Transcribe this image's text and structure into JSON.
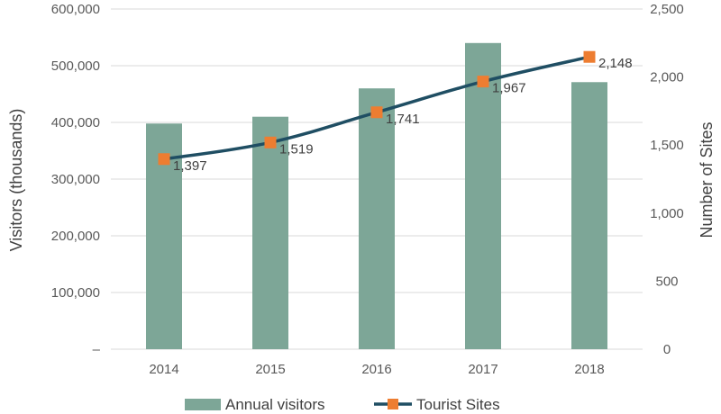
{
  "chart_data": {
    "type": "bar+line",
    "categories": [
      "2014",
      "2015",
      "2016",
      "2017",
      "2018"
    ],
    "series": [
      {
        "name": "Annual visitors",
        "type": "bar",
        "axis": "left",
        "values": [
          398000,
          410000,
          460000,
          540000,
          471000
        ],
        "color": "#7DA697"
      },
      {
        "name": "Tourist Sites",
        "type": "line",
        "axis": "right",
        "values": [
          1397,
          1519,
          1741,
          1967,
          2148
        ],
        "value_labels": [
          "1,397",
          "1,519",
          "1,741",
          "1,967",
          "2,148"
        ],
        "line_color": "#1F4E63",
        "marker_color": "#ED7D31"
      }
    ],
    "ylabel": "Visitors (thousands)",
    "y2label": "Number of Sites",
    "ylim": [
      0,
      600000
    ],
    "y2lim": [
      0,
      2500
    ],
    "yticks": [
      "–",
      "100,000",
      "200,000",
      "300,000",
      "400,000",
      "500,000",
      "600,000"
    ],
    "y2ticks": [
      "0",
      "500",
      "1,000",
      "1,500",
      "2,000",
      "2,500"
    ],
    "grid": true,
    "legend_position": "bottom"
  }
}
